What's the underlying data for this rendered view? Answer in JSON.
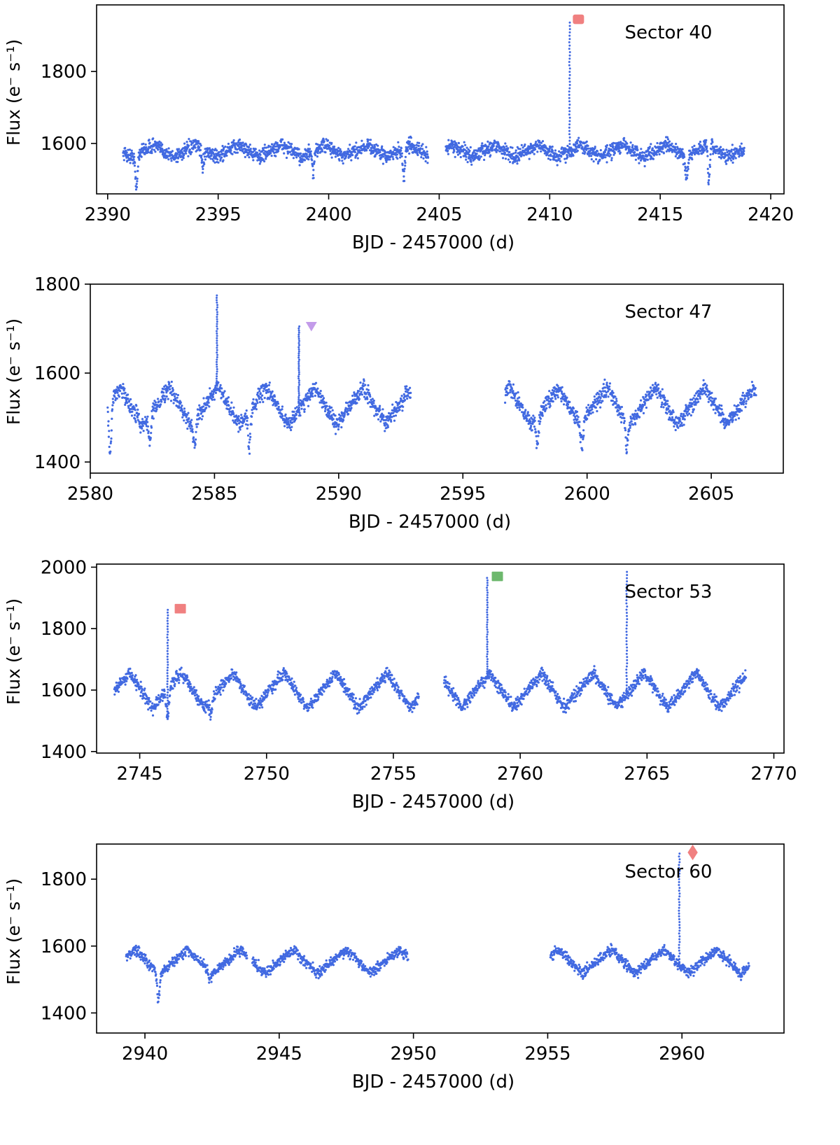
{
  "figure": {
    "point_color": "#4169E1"
  },
  "chart_data": [
    {
      "type": "scatter",
      "sector_label": "Sector 40",
      "xlabel": "BJD - 2457000 (d)",
      "ylabel": "Flux (e⁻ s⁻¹)",
      "xlim": [
        2389.5,
        2420.6
      ],
      "ylim": [
        1460,
        1985
      ],
      "xticks": [
        2390,
        2395,
        2400,
        2405,
        2410,
        2415,
        2420
      ],
      "yticks": [
        1600,
        1800
      ],
      "segments": [
        [
          2390.7,
          2404.5
        ],
        [
          2405.3,
          2418.8
        ]
      ],
      "baseline": 1575,
      "amplitude": 28,
      "period": 1.93,
      "phase_peak": 2392.1,
      "noise": 14,
      "dips": [
        {
          "x": 2391.3,
          "depth": 95
        },
        {
          "x": 2394.3,
          "depth": 50
        },
        {
          "x": 2399.3,
          "depth": 65
        },
        {
          "x": 2403.4,
          "depth": 80
        },
        {
          "x": 2416.2,
          "depth": 60
        },
        {
          "x": 2417.2,
          "depth": 95
        }
      ],
      "flares": [
        {
          "x": 2410.9,
          "peak": 1945,
          "marker": "hexagon",
          "color": "#F08080",
          "mx": 2411.3,
          "my": 1945
        }
      ]
    },
    {
      "type": "scatter",
      "sector_label": "Sector 47",
      "xlabel": "BJD - 2457000 (d)",
      "ylabel": "Flux (e⁻ s⁻¹)",
      "xlim": [
        2580.0,
        2607.9
      ],
      "ylim": [
        1375,
        1800
      ],
      "xticks": [
        2580,
        2585,
        2590,
        2595,
        2600,
        2605
      ],
      "yticks": [
        1400,
        1600,
        1800
      ],
      "segments": [
        [
          2580.7,
          2592.9
        ],
        [
          2596.7,
          2606.8
        ]
      ],
      "baseline": 1515,
      "amplitude": 70,
      "period": 1.96,
      "phase_peak": 2581.2,
      "noise": 13,
      "dips": [
        {
          "x": 2580.8,
          "depth": 120
        },
        {
          "x": 2582.4,
          "depth": 70
        },
        {
          "x": 2584.2,
          "depth": 60
        },
        {
          "x": 2586.4,
          "depth": 75
        },
        {
          "x": 2598.0,
          "depth": 60
        },
        {
          "x": 2599.8,
          "depth": 50
        },
        {
          "x": 2601.6,
          "depth": 55
        }
      ],
      "flares": [
        {
          "x": 2585.1,
          "peak": 1780,
          "marker": "none",
          "color": "#4169E1",
          "mx": 2585.1,
          "my": 1780
        },
        {
          "x": 2588.4,
          "peak": 1705,
          "marker": "triangle_down",
          "color": "#C39BEA",
          "mx": 2588.9,
          "my": 1705
        }
      ]
    },
    {
      "type": "scatter",
      "sector_label": "Sector 53",
      "xlabel": "BJD - 2457000 (d)",
      "ylabel": "Flux (e⁻ s⁻¹)",
      "xlim": [
        2743.3,
        2770.4
      ],
      "ylim": [
        1395,
        2010
      ],
      "xticks": [
        2745,
        2750,
        2755,
        2760,
        2765,
        2770
      ],
      "yticks": [
        1400,
        1600,
        1800,
        2000
      ],
      "segments": [
        [
          2744.0,
          2756.0
        ],
        [
          2757.0,
          2768.9
        ]
      ],
      "baseline": 1585,
      "amplitude": 95,
      "period": 2.03,
      "phase_peak": 2744.6,
      "noise": 14,
      "dips": [
        {
          "x": 2746.1,
          "depth": 90
        },
        {
          "x": 2747.8,
          "depth": 50
        }
      ],
      "flares": [
        {
          "x": 2746.1,
          "peak": 1870,
          "marker": "square",
          "color": "#F08080",
          "mx": 2746.6,
          "my": 1865
        },
        {
          "x": 2758.7,
          "peak": 1965,
          "marker": "square",
          "color": "#6DB86D",
          "mx": 2759.1,
          "my": 1970
        },
        {
          "x": 2764.2,
          "peak": 1995,
          "marker": "none",
          "color": "#4169E1",
          "mx": 2764.2,
          "my": 1995
        }
      ]
    },
    {
      "type": "scatter",
      "sector_label": "Sector 60",
      "xlabel": "BJD - 2457000 (d)",
      "ylabel": "Flux (e⁻ s⁻¹)",
      "xlim": [
        2938.2,
        2963.8
      ],
      "ylim": [
        1340,
        1905
      ],
      "xticks": [
        2940,
        2945,
        2950,
        2955,
        2960
      ],
      "yticks": [
        1400,
        1600,
        1800
      ],
      "segments": [
        [
          2939.3,
          2943.8
        ],
        [
          2944.0,
          2949.8
        ],
        [
          2955.1,
          2962.5
        ]
      ],
      "baseline": 1545,
      "amplitude": 60,
      "period": 1.97,
      "phase_peak": 2941.6,
      "noise": 11,
      "dips": [
        {
          "x": 2940.5,
          "depth": 80
        },
        {
          "x": 2942.4,
          "depth": 25
        }
      ],
      "flares": [
        {
          "x": 2959.9,
          "peak": 1885,
          "marker": "diamond",
          "color": "#F08080",
          "mx": 2960.4,
          "my": 1880
        }
      ]
    }
  ]
}
